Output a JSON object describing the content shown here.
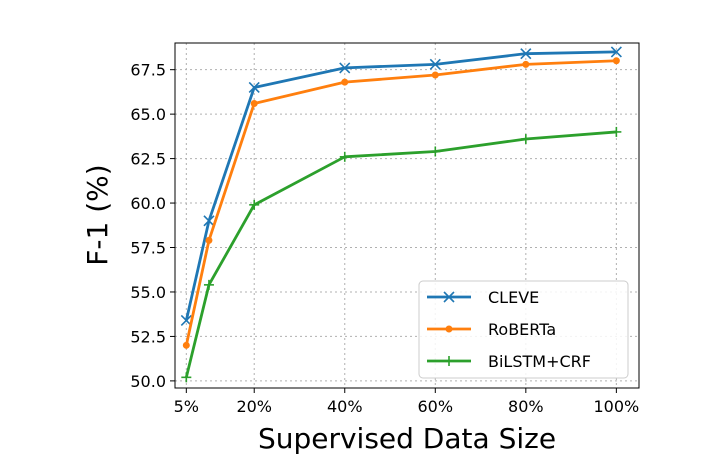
{
  "chart_data": {
    "type": "line",
    "xlabel": "Supervised Data Size",
    "ylabel": "F-1 (%)",
    "x": [
      5,
      10,
      20,
      40,
      60,
      80,
      100
    ],
    "xticks": [
      5,
      20,
      40,
      60,
      80,
      100
    ],
    "xtick_labels": [
      "5%",
      "20%",
      "40%",
      "60%",
      "80%",
      "100%"
    ],
    "xlim": [
      2.5,
      105
    ],
    "ylim": [
      49.6,
      69.0
    ],
    "yticks": [
      50.0,
      52.5,
      55.0,
      57.5,
      60.0,
      62.5,
      65.0,
      67.5
    ],
    "ytick_labels": [
      "50.0",
      "52.5",
      "55.0",
      "57.5",
      "60.0",
      "62.5",
      "65.0",
      "67.5"
    ],
    "grid": true,
    "legend_position": "lower right",
    "series": [
      {
        "name": "CLEVE",
        "color": "#1f77b4",
        "marker": "x",
        "values": [
          53.4,
          59.0,
          66.5,
          67.6,
          67.8,
          68.4,
          68.5
        ]
      },
      {
        "name": "RoBERTa",
        "color": "#ff7f0e",
        "marker": "dot",
        "values": [
          52.0,
          57.9,
          65.6,
          66.8,
          67.2,
          67.8,
          68.0
        ]
      },
      {
        "name": "BiLSTM+CRF",
        "color": "#2ca02c",
        "marker": "plus",
        "values": [
          50.2,
          55.4,
          59.9,
          62.6,
          62.9,
          63.6,
          64.0
        ]
      }
    ]
  }
}
